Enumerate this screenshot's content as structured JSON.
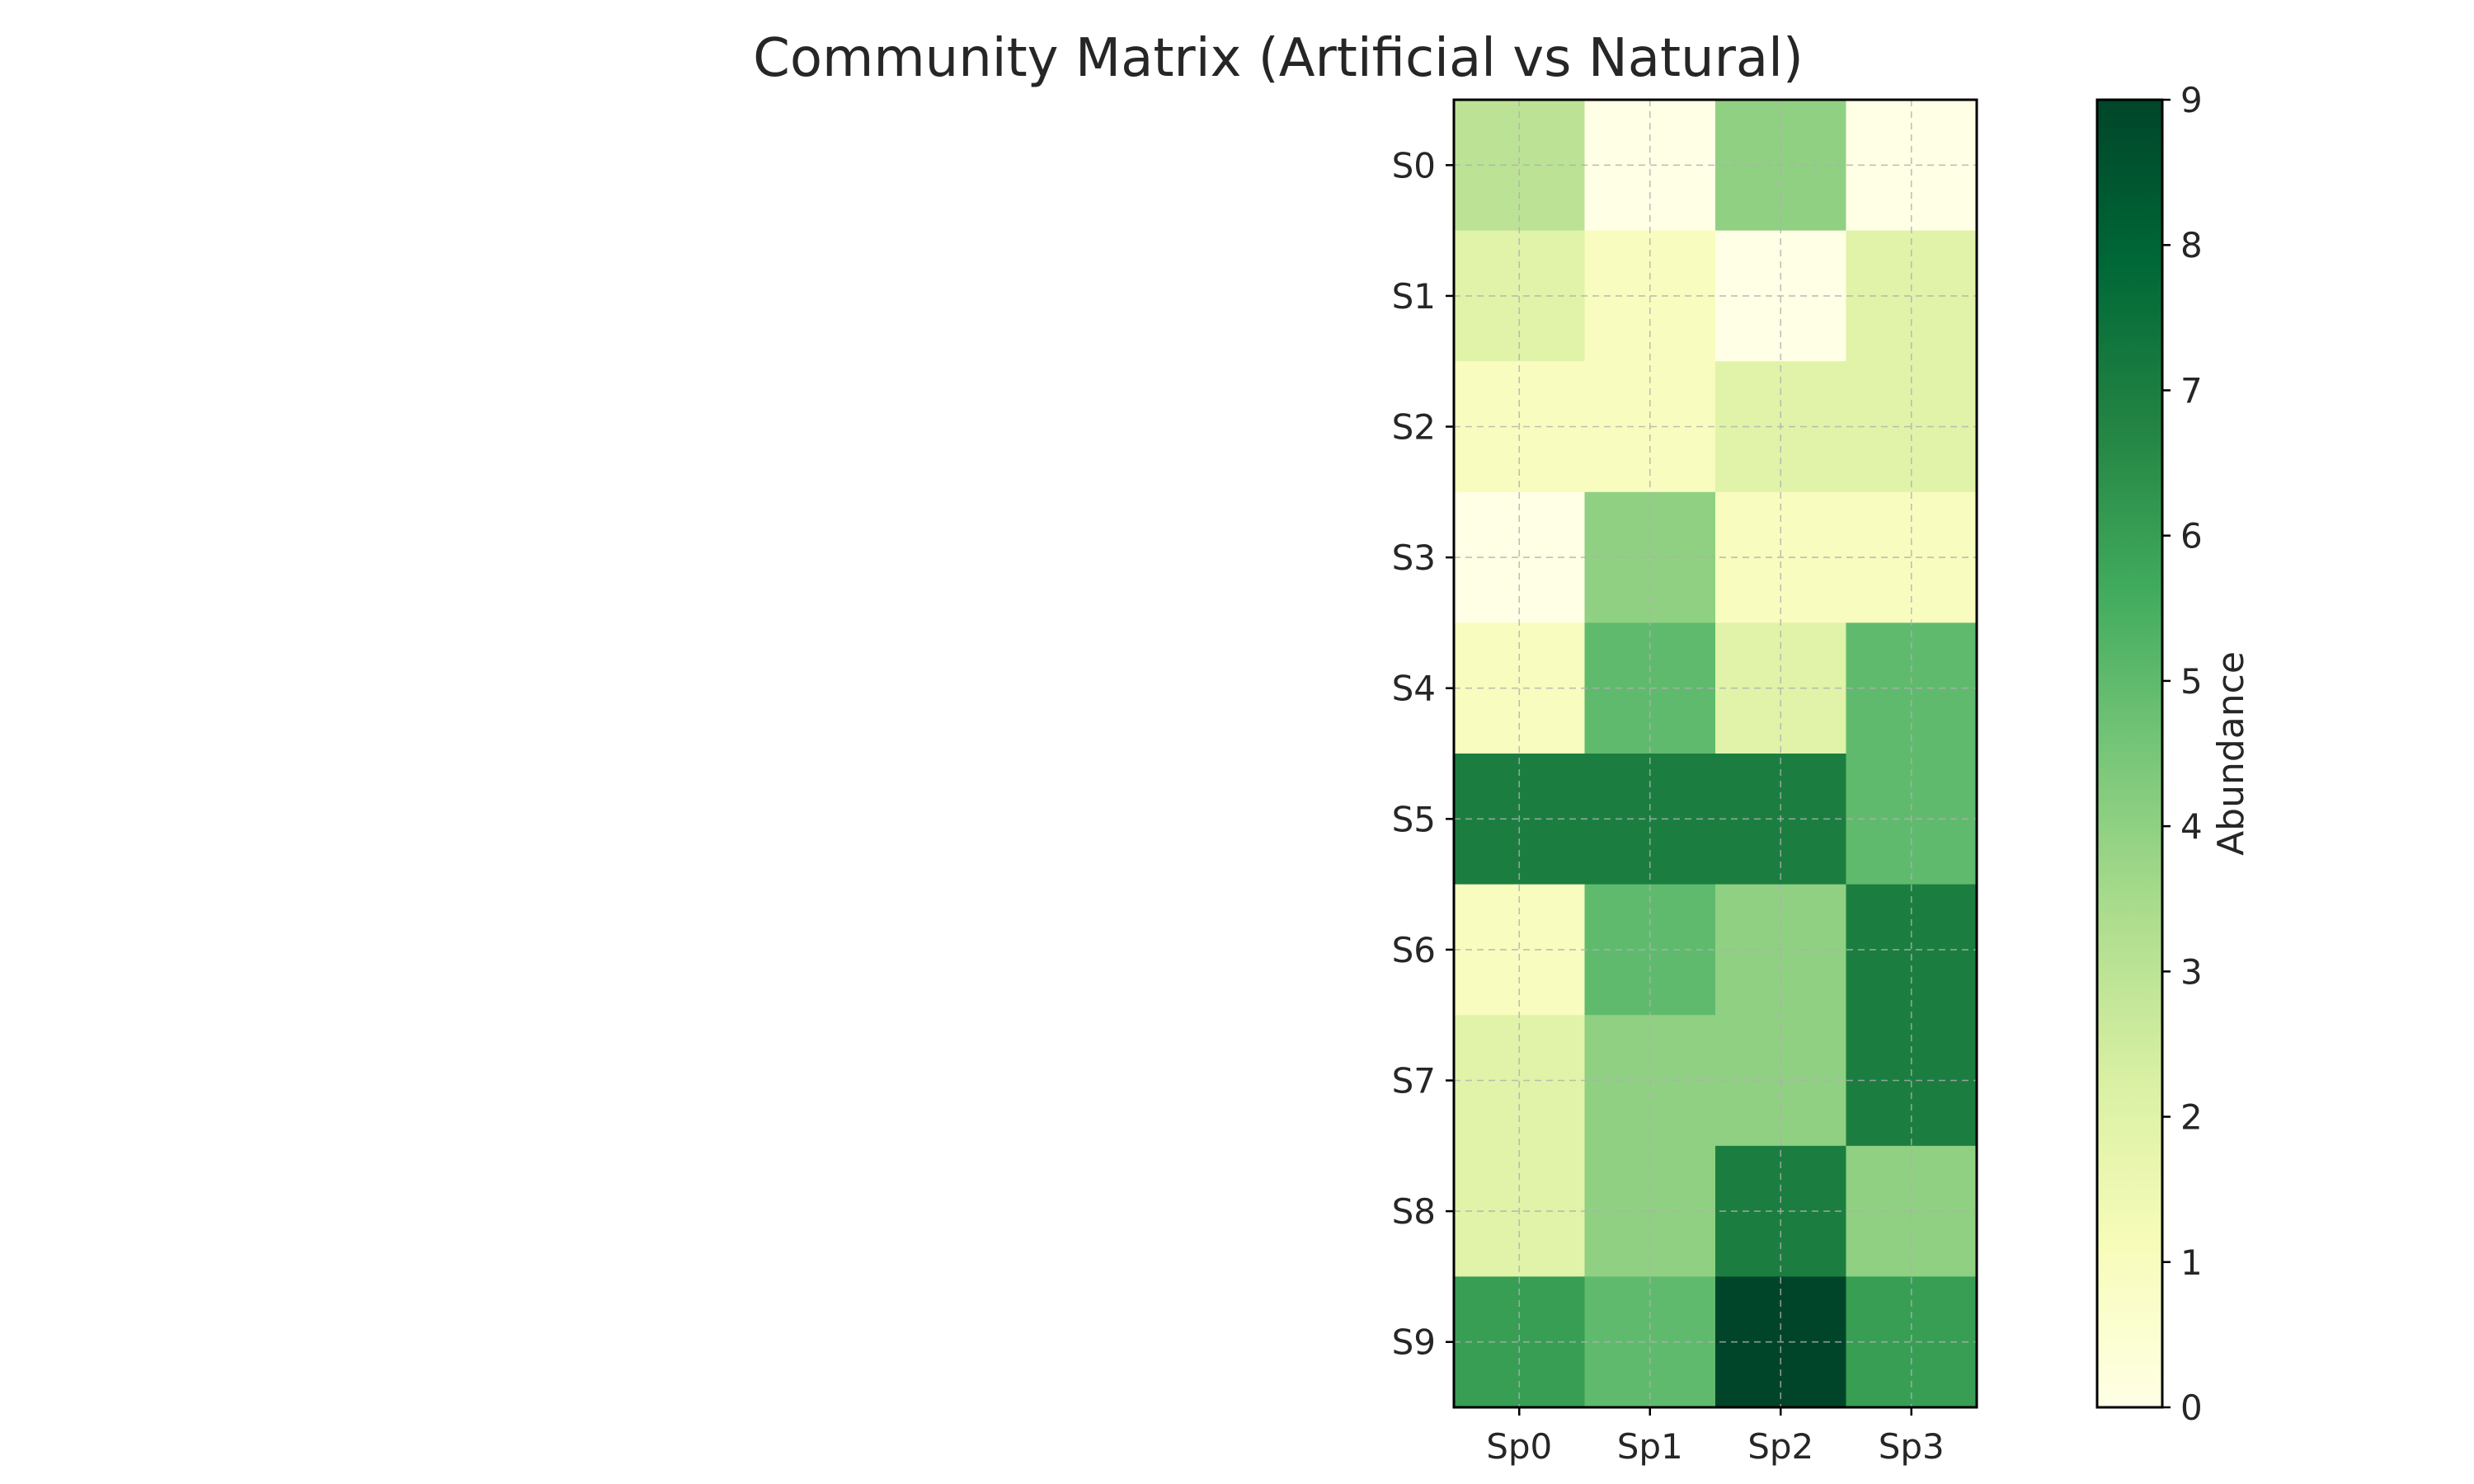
{
  "chart_data": {
    "type": "heatmap",
    "title": "Community Matrix (Artificial vs Natural)",
    "columns": [
      "Sp0",
      "Sp1",
      "Sp2",
      "Sp3"
    ],
    "rows": [
      "S0",
      "S1",
      "S2",
      "S3",
      "S4",
      "S5",
      "S6",
      "S7",
      "S8",
      "S9"
    ],
    "values": [
      [
        3,
        0,
        4,
        0
      ],
      [
        2,
        1,
        0,
        2
      ],
      [
        1,
        1,
        2,
        2
      ],
      [
        0,
        4,
        1,
        1
      ],
      [
        1,
        5,
        2,
        5
      ],
      [
        7,
        7,
        7,
        5
      ],
      [
        1,
        5,
        4,
        7
      ],
      [
        2,
        4,
        4,
        7
      ],
      [
        2,
        4,
        7,
        4
      ],
      [
        6,
        5,
        9,
        6
      ]
    ],
    "colorbar": {
      "label": "Abundance",
      "min": 0,
      "max": 9,
      "ticks": [
        "0",
        "1",
        "2",
        "3",
        "4",
        "5",
        "6",
        "7",
        "8",
        "9"
      ]
    },
    "colormap": "Greens",
    "colorscale": [
      "#ffffe5",
      "#f7fcb9",
      "#d9f0a3",
      "#addd8e",
      "#78c679",
      "#41ab5d",
      "#238443",
      "#006837",
      "#004529"
    ],
    "grid": true,
    "colorbar_position": "right"
  }
}
